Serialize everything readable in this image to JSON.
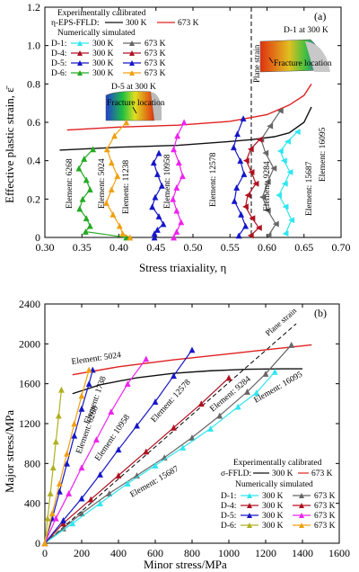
{
  "colors": {
    "cyan": "#2ee6f0",
    "gray": "#666666",
    "darkred": "#b01020",
    "blue": "#1515c8",
    "magenta": "#ee22ee",
    "green": "#22aa22",
    "orange": "#f0a010",
    "olive": "#b0b020",
    "red": "#e02020",
    "black": "#111111"
  },
  "chart_data": [
    {
      "type": "line",
      "panel_label": "(a)",
      "xlabel": "Stress triaxiality, η",
      "ylabel": "Effective plastic strain, ε̄",
      "xlim": [
        0.3,
        0.7
      ],
      "ylim": [
        0.0,
        1.2
      ],
      "xticks": [
        "0.30",
        "0.35",
        "0.40",
        "0.45",
        "0.50",
        "0.55",
        "0.60",
        "0.65",
        "0.70"
      ],
      "yticks": [
        "0",
        "0.2",
        "0.4",
        "0.6",
        "0.8",
        "1.0",
        "1.2"
      ],
      "legend": {
        "header1": "Experimentally calibrated",
        "model_label": "η-EPS-FFLD:",
        "t300": "300 K",
        "t673": "673 K",
        "header2": "Numerically simulated",
        "rows": [
          "D-1:",
          "D-4:",
          "D-5:",
          "D-6:"
        ]
      },
      "plane_strain_label": "Plane strain",
      "plane_strain_x": 0.57,
      "insets": {
        "left_title": "D-5 at 300 K",
        "right_title": "D-1 at 300 K",
        "fracture": "Fracture location"
      },
      "element_labels": [
        "Element: 6268",
        "Element: 5024",
        "Element: 11238",
        "Element: 10958",
        "Element: 12578",
        "Element: 9284",
        "Element: 15687",
        "Element: 16095"
      ],
      "series": [
        {
          "name": "300 K",
          "color_key": "black",
          "x": [
            0.32,
            0.4,
            0.48,
            0.55,
            0.58,
            0.61,
            0.63,
            0.65,
            0.66
          ],
          "y": [
            0.455,
            0.47,
            0.48,
            0.5,
            0.51,
            0.525,
            0.545,
            0.6,
            0.68
          ]
        },
        {
          "name": "673 K",
          "color_key": "red",
          "x": [
            0.33,
            0.4,
            0.48,
            0.55,
            0.6,
            0.63,
            0.65,
            0.66
          ],
          "y": [
            0.56,
            0.575,
            0.585,
            0.605,
            0.64,
            0.69,
            0.74,
            0.8
          ]
        },
        {
          "name": "D-1 300 K",
          "color_key": "cyan",
          "marker": "tri-left",
          "x": [
            0.641,
            0.628,
            0.618,
            0.623,
            0.631,
            0.624,
            0.616,
            0.625,
            0.633,
            0.625
          ],
          "y": [
            0.55,
            0.5,
            0.45,
            0.4,
            0.34,
            0.28,
            0.22,
            0.16,
            0.09,
            0.02
          ]
        },
        {
          "name": "D-1 673 K",
          "color_key": "gray",
          "marker": "tri-left",
          "x": [
            0.618,
            0.604,
            0.592,
            0.598,
            0.609,
            0.601,
            0.594,
            0.601,
            0.612,
            0.602
          ],
          "y": [
            0.66,
            0.58,
            0.51,
            0.44,
            0.36,
            0.29,
            0.21,
            0.14,
            0.07,
            0.01
          ]
        },
        {
          "name": "D-4 300 K",
          "color_key": "darkred",
          "marker": "tri-left",
          "x": [
            0.59,
            0.578,
            0.572,
            0.579,
            0.585,
            0.574,
            0.571,
            0.58,
            0.589,
            0.578
          ],
          "y": [
            0.51,
            0.46,
            0.4,
            0.34,
            0.28,
            0.22,
            0.16,
            0.1,
            0.05,
            0.01
          ]
        },
        {
          "name": "D-5 300 K",
          "color_key": "blue",
          "marker": "tri-up",
          "x": [
            0.568,
            0.56,
            0.555,
            0.564,
            0.569,
            0.559,
            0.556,
            0.565,
            0.571,
            0.562
          ],
          "y": [
            0.62,
            0.54,
            0.47,
            0.4,
            0.33,
            0.26,
            0.19,
            0.12,
            0.06,
            0.01
          ]
        },
        {
          "name": "D-5 673 K",
          "color_key": "blue",
          "marker": "tri-up",
          "x": [
            0.454,
            0.447,
            0.452,
            0.458,
            0.449,
            0.445,
            0.454,
            0.46,
            0.452,
            0.448,
            0.448
          ],
          "y": [
            0.44,
            0.39,
            0.33,
            0.27,
            0.21,
            0.16,
            0.11,
            0.07,
            0.04,
            0.02,
            0.0
          ]
        },
        {
          "name": "D-6 673 K",
          "color_key": "magenta",
          "marker": "tri-up",
          "x": [
            0.488,
            0.479,
            0.474,
            0.481,
            0.486,
            0.478,
            0.473,
            0.478,
            0.484,
            0.478,
            0.474
          ],
          "y": [
            0.6,
            0.53,
            0.46,
            0.39,
            0.32,
            0.26,
            0.2,
            0.14,
            0.08,
            0.03,
            0.0
          ]
        },
        {
          "name": "D-6 300 K",
          "color_key": "green",
          "marker": "tri-up",
          "x": [
            0.365,
            0.353,
            0.346,
            0.356,
            0.361,
            0.351,
            0.347,
            0.356,
            0.361,
            0.355,
            0.41
          ],
          "y": [
            0.46,
            0.41,
            0.36,
            0.3,
            0.25,
            0.2,
            0.15,
            0.1,
            0.06,
            0.03,
            0.0
          ]
        },
        {
          "name": "D-4 673 K",
          "color_key": "orange",
          "marker": "tri-up",
          "x": [
            0.41,
            0.394,
            0.384,
            0.39,
            0.398,
            0.39,
            0.383,
            0.392,
            0.401,
            0.405,
            0.415
          ],
          "y": [
            0.6,
            0.53,
            0.46,
            0.39,
            0.32,
            0.25,
            0.18,
            0.12,
            0.06,
            0.02,
            0.0
          ]
        }
      ]
    },
    {
      "type": "line",
      "panel_label": "(b)",
      "xlabel": "Minor stress/MPa",
      "ylabel": "Major stress/MPa",
      "xlim": [
        0,
        1600
      ],
      "ylim": [
        0,
        2400
      ],
      "xticks": [
        "0",
        "200",
        "400",
        "600",
        "800",
        "1000",
        "1200",
        "1400",
        "1600"
      ],
      "yticks": [
        "0",
        "400",
        "800",
        "1200",
        "1600",
        "2000",
        "2400"
      ],
      "legend": {
        "header1": "Experimentally calibrated",
        "model_label": "σ-FFLD:",
        "t300": "300 K",
        "t673": "673 K",
        "header2": "Numerically simulated",
        "rows": [
          "D-1:",
          "D-4:",
          "D-5:",
          "D-6:"
        ]
      },
      "plane_strain_label": "Plane strain",
      "element_labels": [
        "Element: 5024",
        "Element: 6268",
        "Element: 1738",
        "Element: 10958",
        "Element: 12578",
        "Element: 9284",
        "Element: 16095",
        "Element: 15687"
      ],
      "series": [
        {
          "name": "300 K",
          "color_key": "black",
          "x": [
            150,
            300,
            500,
            700,
            900,
            1100,
            1300,
            1400
          ],
          "y": [
            1500,
            1590,
            1660,
            1705,
            1730,
            1745,
            1750,
            1750
          ]
        },
        {
          "name": "673 K",
          "color_key": "red",
          "x": [
            150,
            400,
            700,
            1000,
            1200,
            1400,
            1450
          ],
          "y": [
            1690,
            1770,
            1840,
            1900,
            1940,
            1980,
            1990
          ]
        },
        {
          "name": "D-1 673 K",
          "color_key": "gray",
          "marker": "tri-up",
          "x": [
            0,
            100,
            200,
            350,
            500,
            650,
            800,
            950,
            1100,
            1200,
            1340
          ],
          "y": [
            0,
            150,
            300,
            500,
            680,
            860,
            1060,
            1280,
            1520,
            1700,
            1990
          ]
        },
        {
          "name": "D-1 300 K",
          "color_key": "cyan",
          "marker": "tri-up",
          "x": [
            0,
            150,
            300,
            450,
            600,
            750,
            900,
            1050,
            1150,
            1250
          ],
          "y": [
            0,
            200,
            400,
            600,
            780,
            960,
            1150,
            1370,
            1510,
            1720
          ]
        },
        {
          "name": "D-4 673 K",
          "color_key": "darkred",
          "marker": "tri-up",
          "x": [
            0,
            100,
            250,
            400,
            550,
            700,
            850,
            1000
          ],
          "y": [
            0,
            200,
            440,
            680,
            920,
            1160,
            1400,
            1660
          ]
        },
        {
          "name": "D-5 300 K",
          "color_key": "blue",
          "marker": "tri-up",
          "x": [
            0,
            100,
            200,
            300,
            400,
            500,
            600,
            700,
            800
          ],
          "y": [
            0,
            230,
            450,
            690,
            940,
            1180,
            1420,
            1680,
            1940
          ]
        },
        {
          "name": "D-5 673 K",
          "color_key": "blue",
          "marker": "tri-up",
          "x": [
            0,
            40,
            80,
            120,
            160,
            200,
            240,
            260
          ],
          "y": [
            0,
            250,
            520,
            800,
            1080,
            1350,
            1600,
            1740
          ]
        },
        {
          "name": "D-6 673 K",
          "color_key": "magenta",
          "marker": "tri-up",
          "x": [
            0,
            60,
            130,
            200,
            280,
            360,
            450,
            550
          ],
          "y": [
            0,
            250,
            500,
            760,
            1040,
            1320,
            1600,
            1850
          ]
        },
        {
          "name": "D-6 300 K",
          "color_key": "olive",
          "marker": "tri-up",
          "x": [
            0,
            15,
            30,
            45,
            60,
            75,
            90
          ],
          "y": [
            0,
            250,
            500,
            760,
            1020,
            1280,
            1540
          ]
        },
        {
          "name": "D-4 300 K",
          "color_key": "orange",
          "marker": "tri-up",
          "x": [
            0,
            40,
            80,
            120,
            160,
            200,
            240
          ],
          "y": [
            0,
            300,
            600,
            900,
            1200,
            1480,
            1740
          ]
        }
      ]
    }
  ]
}
